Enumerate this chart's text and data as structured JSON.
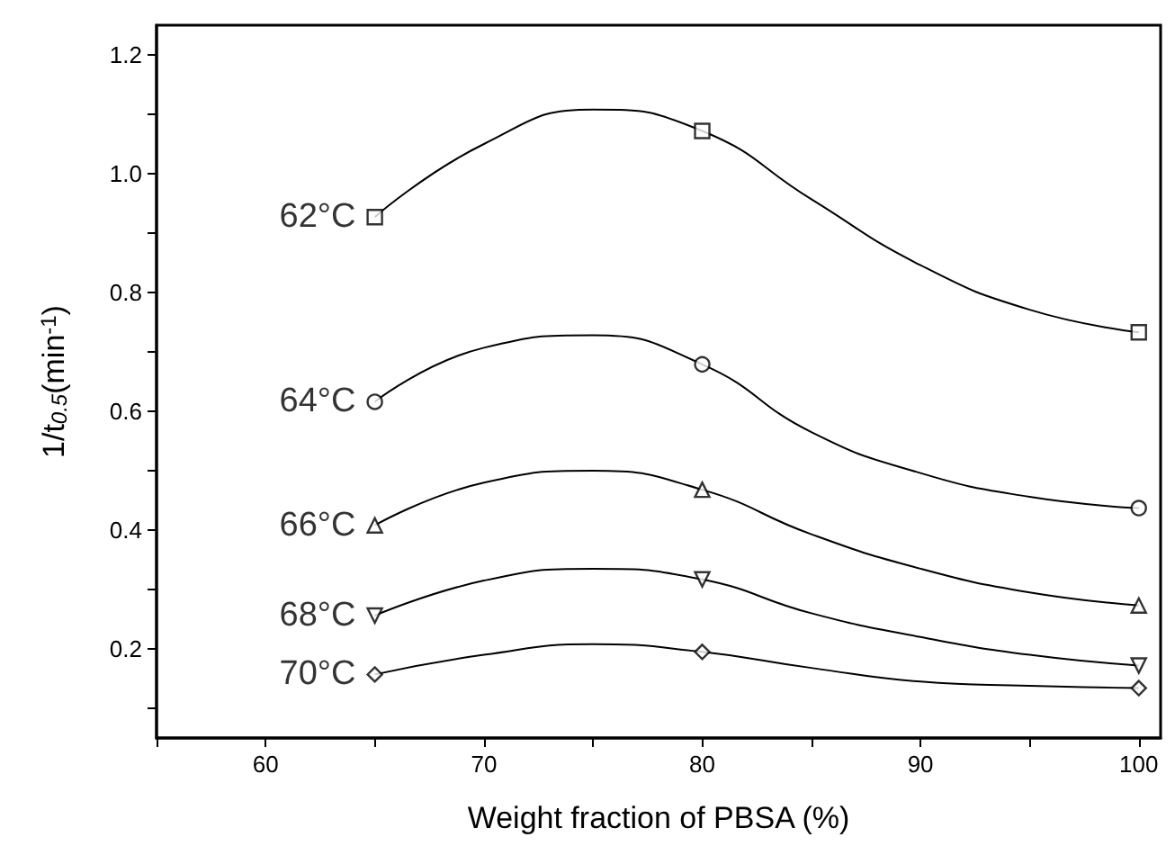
{
  "chart_data": {
    "type": "scatter",
    "xlabel": "Weight fraction of PBSA (%)",
    "ylabel": "1/t$_{0.5}$(min$^{-1}$)",
    "xlim": [
      55,
      101
    ],
    "xticks": [
      60,
      70,
      80,
      90,
      100
    ],
    "ylim": [
      0.05,
      1.25
    ],
    "yticks": [
      0.2,
      0.4,
      0.6,
      0.8,
      {
        "value": 1,
        "label": "1.0"
      },
      1.2
    ],
    "grid": false,
    "series": [
      {
        "name": "62°C",
        "marker": "square",
        "color": "#000000",
        "x": [
          65,
          80,
          100
        ],
        "values": [
          0.927,
          1.072,
          0.733
        ]
      },
      {
        "type": "line",
        "marker": "none",
        "color": "#000000",
        "x": [
          65,
          70,
          75,
          80,
          85,
          90,
          95,
          100
        ],
        "values": [
          0.927,
          1.05,
          1.108,
          1.072,
          0.957,
          0.846,
          0.771,
          0.733
        ]
      },
      {
        "name": "64°C",
        "marker": "circle",
        "color": "#000000",
        "x": [
          65,
          80,
          100
        ],
        "values": [
          0.616,
          0.679,
          0.437
        ]
      },
      {
        "type": "line",
        "marker": "none",
        "color": "#000000",
        "x": [
          65,
          70,
          75,
          80,
          85,
          90,
          95,
          100
        ],
        "values": [
          0.616,
          0.707,
          0.728,
          0.679,
          0.565,
          0.496,
          0.456,
          0.437
        ]
      },
      {
        "name": "66°C",
        "marker": "triangle",
        "color": "#000000",
        "x": [
          65,
          80,
          100
        ],
        "values": [
          0.408,
          0.468,
          0.273
        ]
      },
      {
        "type": "line",
        "marker": "none",
        "color": "#000000",
        "x": [
          65,
          70,
          75,
          80,
          85,
          90,
          95,
          100
        ],
        "values": [
          0.408,
          0.48,
          0.5,
          0.468,
          0.393,
          0.335,
          0.295,
          0.273
        ]
      },
      {
        "name": "68°C",
        "marker": "triangle_down",
        "color": "#000000",
        "x": [
          65,
          80,
          100
        ],
        "values": [
          0.256,
          0.317,
          0.172
        ]
      },
      {
        "type": "line",
        "marker": "none",
        "color": "#000000",
        "x": [
          65,
          70,
          75,
          80,
          85,
          90,
          95,
          100
        ],
        "values": [
          0.256,
          0.315,
          0.335,
          0.317,
          0.26,
          0.22,
          0.19,
          0.172
        ]
      },
      {
        "name": "70°C",
        "marker": "diamond",
        "color": "#000000",
        "x": [
          65,
          80,
          100
        ],
        "values": [
          0.157,
          0.195,
          0.134
        ]
      },
      {
        "type": "line",
        "marker": "none",
        "color": "#000000",
        "x": [
          65,
          70,
          75,
          80,
          85,
          90,
          95,
          100
        ],
        "values": [
          0.157,
          0.19,
          0.208,
          0.195,
          0.168,
          0.145,
          0.138,
          0.134
        ]
      }
    ]
  }
}
